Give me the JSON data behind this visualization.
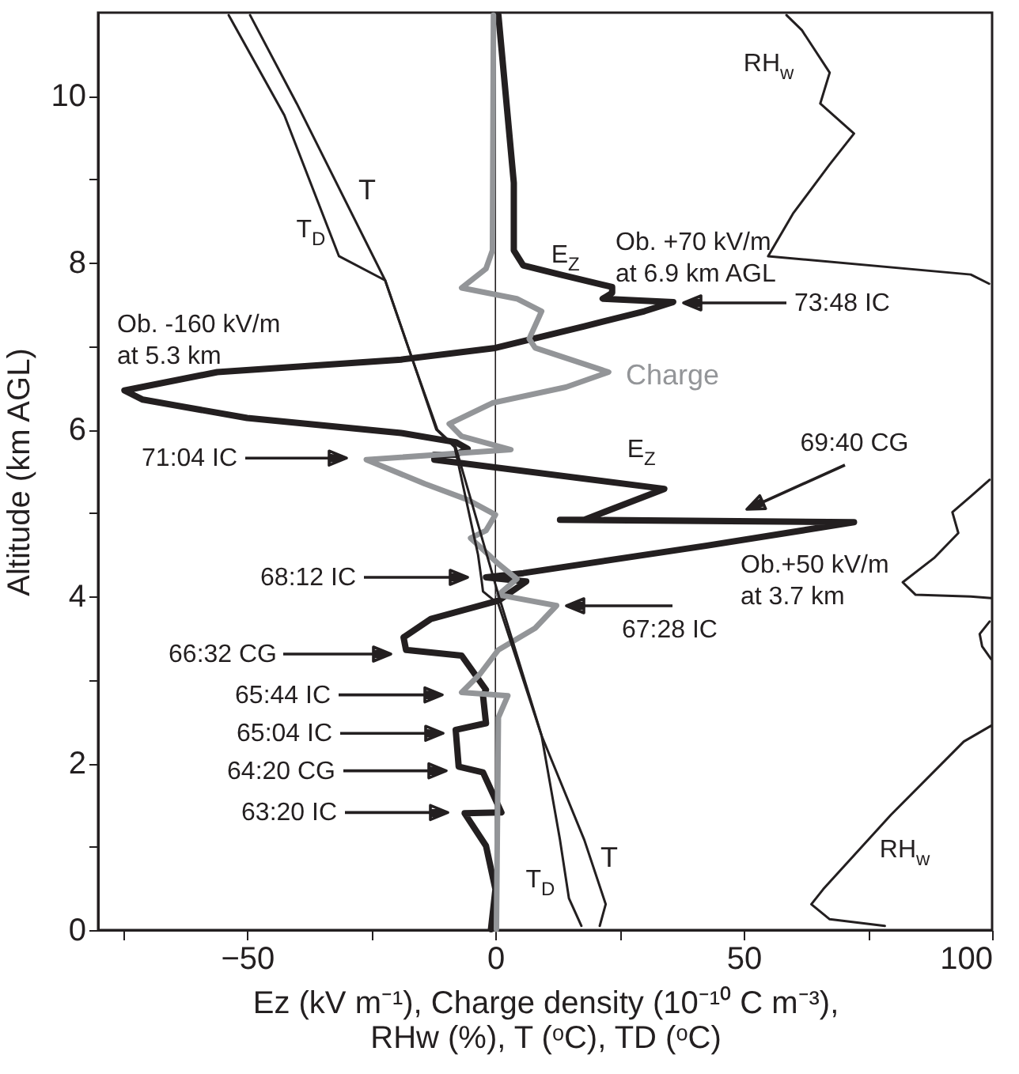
{
  "chart_data": {
    "type": "line",
    "orientation": "horizontal",
    "xlabel": "Ez (kV m⁻¹), Charge density (10⁻¹⁰ C m⁻³),\nRHw (%), T (ᵒC), TD (ᵒC)",
    "ylabel": "Altitude (km AGL)",
    "xlim": [
      -80,
      100
    ],
    "ylim": [
      0,
      11
    ],
    "xticks": [
      {
        "value": -75,
        "label": null
      },
      -50,
      {
        "value": -25,
        "label": null
      },
      0,
      {
        "value": 25,
        "label": null
      },
      50,
      {
        "value": 75,
        "label": null
      },
      100
    ],
    "yticks": [
      0,
      {
        "value": 1,
        "label": null
      },
      2,
      {
        "value": 3,
        "label": null
      },
      4,
      {
        "value": 5,
        "label": null
      },
      6,
      {
        "value": 7,
        "label": null
      },
      8,
      {
        "value": 9,
        "label": null
      },
      10
    ],
    "ref_lines": [
      {
        "axis": "x",
        "value": 0
      }
    ],
    "series": [
      {
        "color": "#231f20",
        "x": [
          10.97,
          8.96,
          8.15,
          7.97,
          7.86,
          7.71,
          7.64,
          7.57,
          7.53,
          7.42,
          7.24,
          6.98,
          6.84,
          6.69,
          6.47,
          6.36,
          6.14,
          5.96,
          5.85,
          5.77,
          5.7,
          5.7,
          5.64,
          5.29,
          4.92,
          4.92,
          4.89,
          4.61,
          4.28,
          4.23,
          4.18,
          3.95,
          3.73,
          3.51,
          3.36,
          3.29,
          2.88,
          2.81,
          2.48,
          2.4,
          1.96,
          1.89,
          1.41,
          1.4,
          1.01,
          0.49,
          0.01
        ],
        "values": [
          0.6,
          3.7,
          3.7,
          5.6,
          13,
          23.5,
          23.5,
          21.6,
          35.8,
          30,
          17.9,
          0,
          -19,
          -56,
          -74.7,
          -71,
          -50,
          -19,
          -8,
          -5.6,
          -8,
          -12.3,
          -12.3,
          34,
          17.9,
          13,
          72.2,
          42.6,
          5.6,
          -1.9,
          6.2,
          0.6,
          -13,
          -18.5,
          -18,
          -6.8,
          -1.9,
          -2.5,
          -1.9,
          -8,
          -7.4,
          -2.5,
          1.2,
          -6.2,
          -1.9,
          0,
          -0.9
        ]
      },
      {
        "color": "#939598",
        "x": [
          10.97,
          8.15,
          7.93,
          7.7,
          7.57,
          7.42,
          7.09,
          6.98,
          6.69,
          6.51,
          6.32,
          6.07,
          5.92,
          5.76,
          5.64,
          5.35,
          5.16,
          4.98,
          4.79,
          4.7,
          4.39,
          4.21,
          4.02,
          3.89,
          3.62,
          3.36,
          3.07,
          2.85,
          2.81,
          2.55,
          0.01
        ],
        "values": [
          -0.4,
          -0.6,
          -1.9,
          -6.8,
          4.3,
          9.3,
          6.8,
          8,
          22.8,
          14.2,
          -0.6,
          -9.3,
          -6.8,
          3.1,
          -26,
          -14.2,
          -5.6,
          0,
          -1.9,
          -5,
          0.6,
          4.3,
          0.6,
          12.3,
          8,
          0.6,
          -3.1,
          -6.8,
          2.5,
          0.6,
          0.2
        ]
      },
      {
        "color": "#231f20",
        "x": [
          10.97,
          9.91,
          7.79,
          6.84,
          6.0,
          5.79,
          4.02,
          2.33,
          1.08,
          0.31,
          0.05
        ],
        "values": [
          -49.4,
          -40,
          -22.2,
          -16.7,
          -11.7,
          -8,
          0.6,
          9.3,
          17.9,
          22.2,
          21
        ]
      },
      {
        "color": "#231f20",
        "x": [
          10.97,
          9.77,
          8.08,
          7.79,
          6.84,
          6.0,
          5.79,
          4.5,
          4.2,
          4.06,
          3.91,
          2.33,
          1.08,
          0.38,
          0.05
        ],
        "values": [
          -53.7,
          -42.5,
          -31.5,
          -22.2,
          -16.7,
          -11.9,
          -8.2,
          -3.5,
          -2.8,
          -2.5,
          0.6,
          9.3,
          13,
          14.8,
          17.3
        ]
      },
      {
        "color": "#231f20",
        "x": [
          10.97,
          10.79,
          10.28,
          9.91,
          9.55,
          9.18,
          8.59,
          8.08,
          7.86,
          7.75,
          7.0,
          5.4,
          5.2,
          5.01,
          4.76,
          4.46,
          4.17,
          4.02,
          4.0,
          3.98,
          3.8,
          3.7,
          3.55,
          3.4,
          3.25,
          2.9,
          2.45,
          2.26,
          1.38,
          0.49,
          0.31,
          0.13,
          0.05
        ],
        "values": [
          58.6,
          61.7,
          67.3,
          65.4,
          72.2,
          67.3,
          59.9,
          54.9,
          95.7,
          99.4,
          null,
          99.5,
          95.7,
          92,
          93.2,
          88.3,
          82,
          84.6,
          95.7,
          99.8,
          null,
          99.5,
          97.5,
          98,
          99.8,
          null,
          99.8,
          94.3,
          79.6,
          66,
          63.6,
          67.3,
          78.4
        ]
      }
    ],
    "annotations": [
      "E$_{Z}$",
      "E$_{Z}$",
      "Charge",
      "T",
      "T$_{D}$",
      "T",
      "T$_{D}$",
      "RH$_{w}$",
      "RH$_{w}$",
      "Ob. -160 kV/m\nat 5.3 km",
      "Ob. +70 kV/m\nat 6.9 km AGL",
      "Ob.+50 kV/m\nat 3.7 km",
      "73:48 IC",
      "71:04 IC",
      "69:40 CG",
      "68:12 IC",
      "67:28 IC",
      "66:32 CG",
      "65:44 IC",
      "65:04 IC",
      "64:20 CG",
      "63:20 IC"
    ]
  }
}
